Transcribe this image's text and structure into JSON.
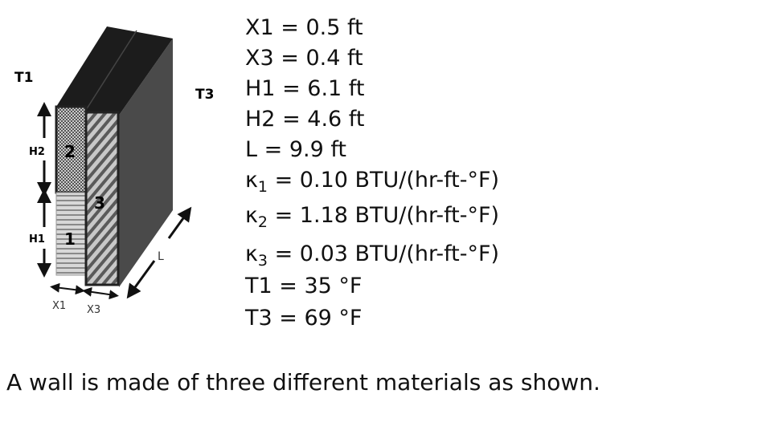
{
  "diagram": {
    "labels": {
      "t1": "T1",
      "t3": "T3",
      "h1": "H1",
      "h2": "H2",
      "x1": "X1",
      "x3": "X3",
      "l": "L",
      "m1": "1",
      "m2": "2",
      "m3": "3"
    }
  },
  "given": [
    {
      "symbol": "X1",
      "sub": "",
      "rest": " = 0.5 ft"
    },
    {
      "symbol": "X3",
      "sub": "",
      "rest": " = 0.4 ft"
    },
    {
      "symbol": "H1",
      "sub": "",
      "rest": " = 6.1 ft"
    },
    {
      "symbol": "H2",
      "sub": "",
      "rest": " = 4.6 ft"
    },
    {
      "symbol": "L",
      "sub": "",
      "rest": " = 9.9 ft"
    },
    {
      "symbol": "κ",
      "sub": "1",
      "rest": " = 0.10 BTU/(hr-ft-°F)"
    },
    {
      "symbol": "κ",
      "sub": "2",
      "rest": " = 1.18 BTU/(hr-ft-°F)"
    },
    {
      "symbol": "κ",
      "sub": "3",
      "rest": " = 0.03 BTU/(hr-ft-°F)"
    },
    {
      "symbol": "T1",
      "sub": "",
      "rest": " = 35 °F"
    },
    {
      "symbol": "T3",
      "sub": "",
      "rest": " = 69 °F"
    }
  ],
  "statement": "A wall is made of three different materials as shown."
}
